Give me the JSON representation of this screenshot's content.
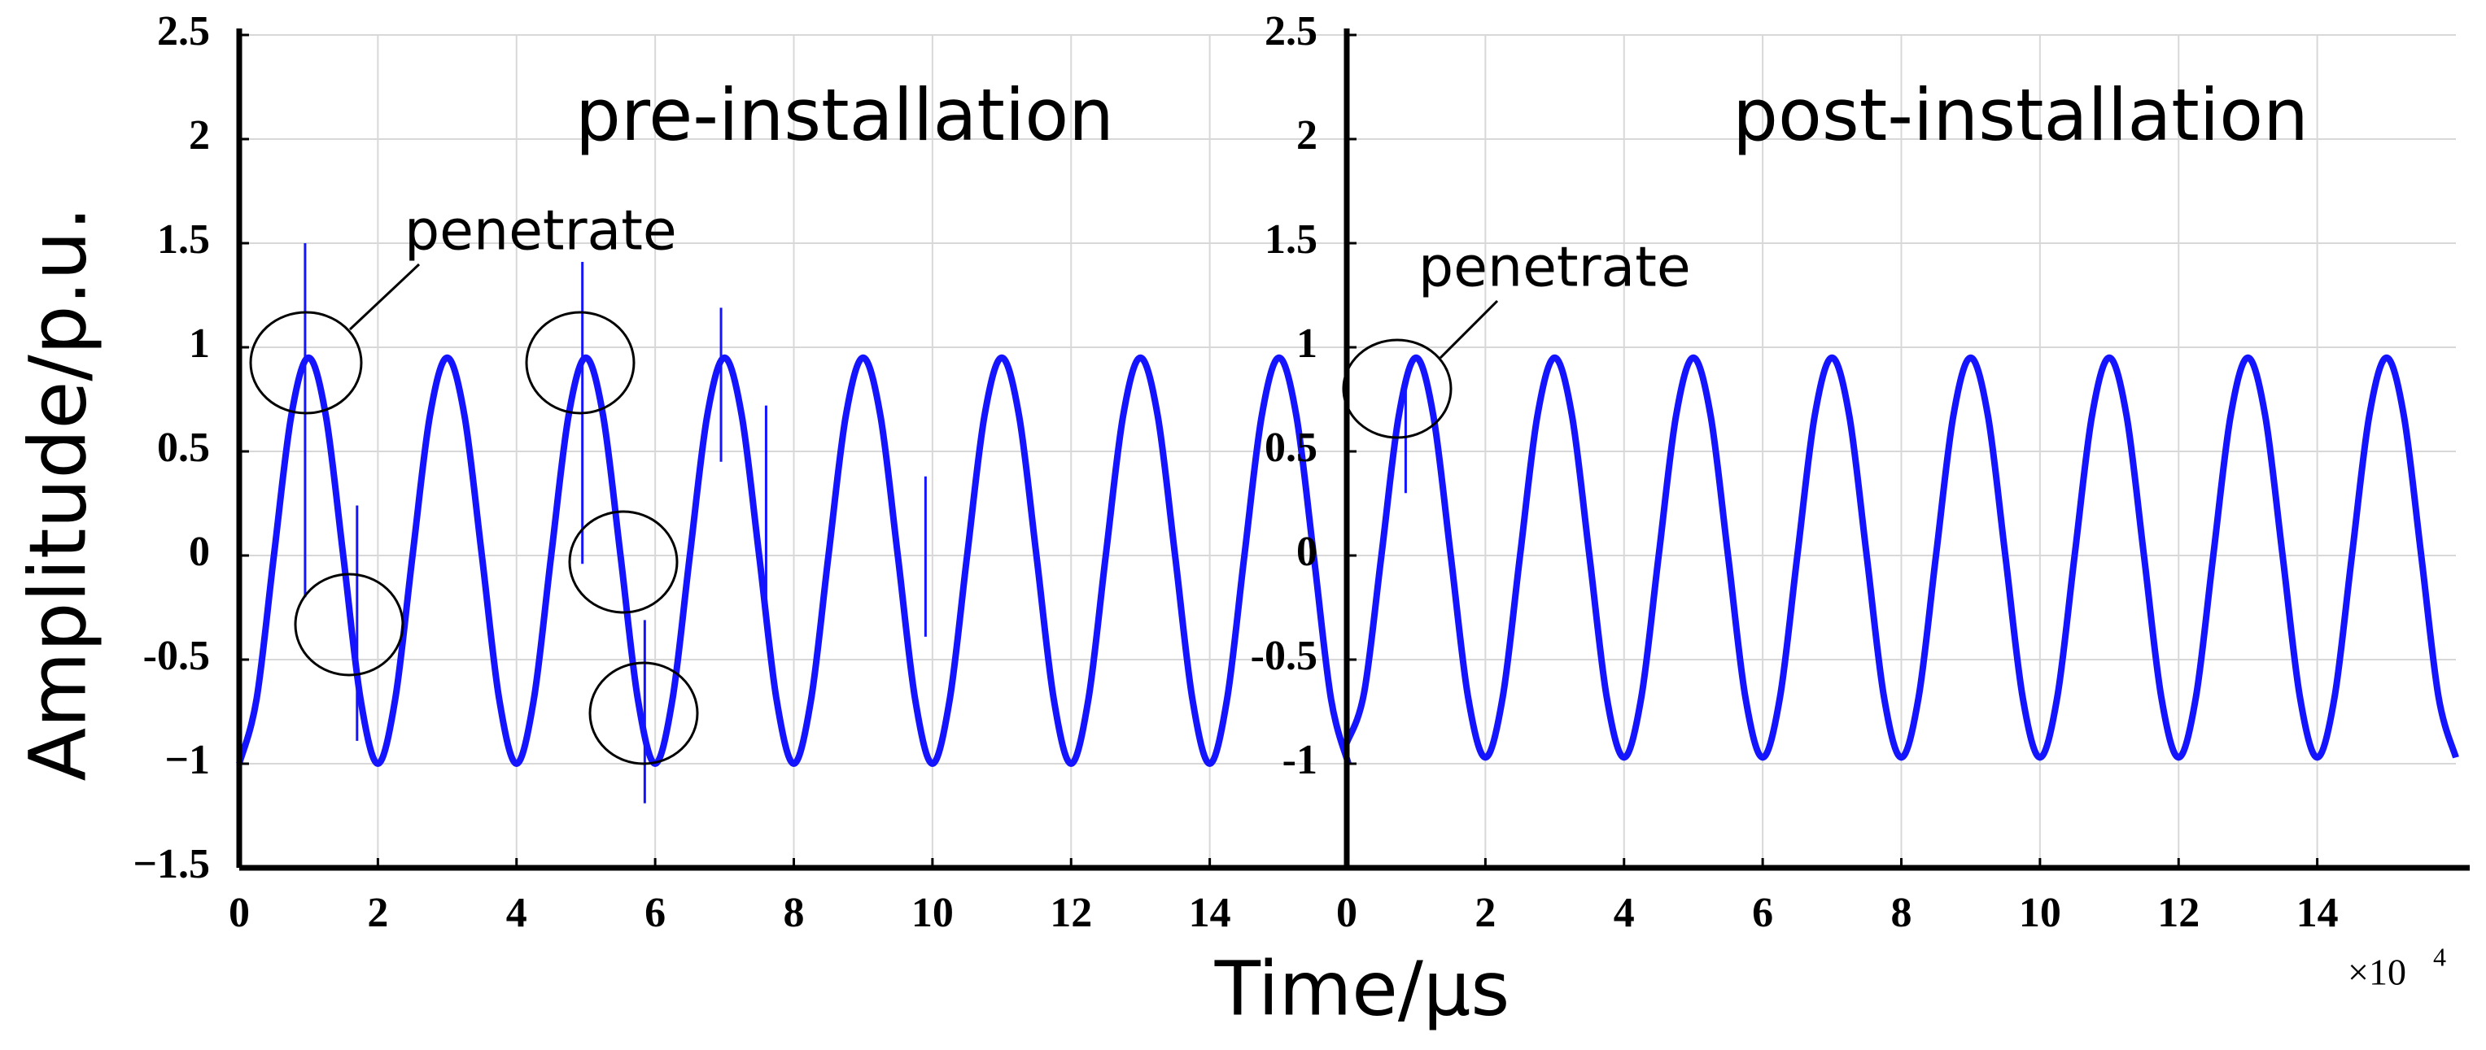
{
  "figure": {
    "ylabel": "Amplitude/p.u.",
    "xlabel": "Time/μs",
    "x_multiplier": {
      "base": "×10",
      "exponent": "4"
    }
  },
  "chart_data": [
    {
      "type": "line",
      "title": "pre-installation",
      "annotations": [
        {
          "text": "penetrate"
        }
      ],
      "x": [
        0,
        0.25,
        0.5,
        0.75,
        1,
        1.25,
        1.5,
        1.75,
        2,
        2.25,
        2.5,
        2.75,
        3,
        3.25,
        3.5,
        3.75,
        4,
        4.25,
        4.5,
        4.75,
        5,
        5.25,
        5.5,
        5.75,
        6,
        6.25,
        6.5,
        6.75,
        7,
        7.25,
        7.5,
        7.75,
        8,
        8.25,
        8.5,
        8.75,
        9,
        9.25,
        9.5,
        9.75,
        10,
        10.25,
        10.5,
        10.75,
        11,
        11.25,
        11.5,
        11.75,
        12,
        12.25,
        12.5,
        12.75,
        13,
        13.25,
        13.5,
        13.75,
        14,
        14.25,
        14.5,
        14.75,
        15,
        15.25,
        15.5,
        15.75,
        16
      ],
      "series": [
        {
          "color": "#1414ff",
          "values": [
            -1,
            -0.69,
            0,
            0.67,
            0.95,
            0.67,
            0,
            -0.69,
            -1,
            -0.69,
            0,
            0.67,
            0.95,
            0.67,
            0,
            -0.69,
            -1,
            -0.69,
            0,
            0.67,
            0.95,
            0.67,
            0,
            -0.69,
            -1,
            -0.69,
            0,
            0.67,
            0.95,
            0.67,
            0,
            -0.69,
            -1,
            -0.69,
            0,
            0.67,
            0.95,
            0.67,
            0,
            -0.69,
            -1,
            -0.69,
            0,
            0.67,
            0.95,
            0.67,
            0,
            -0.69,
            -1,
            -0.69,
            0,
            0.67,
            0.95,
            0.67,
            0,
            -0.69,
            -1,
            -0.69,
            0,
            0.67,
            0.95,
            0.67,
            0,
            -0.69,
            -1
          ]
        }
      ],
      "spikes": {
        "x": [
          0.95,
          1.7,
          4.95,
          5.85,
          6.95,
          7.6,
          9.9
        ],
        "low": [
          -0.2,
          -0.89,
          -0.04,
          -1.19,
          0.45,
          -0.31,
          -0.39
        ],
        "high": [
          1.5,
          0.24,
          1.41,
          -0.31,
          1.19,
          0.72,
          0.38
        ]
      },
      "xlim": [
        0,
        16
      ],
      "xticks": [
        0,
        2,
        4,
        6,
        8,
        10,
        12,
        14
      ],
      "ylim": [
        -1.5,
        2.5
      ],
      "yticks": [
        {
          "value": -1.5,
          "label": "−1.5"
        },
        {
          "value": -1,
          "label": "−1"
        },
        -0.5,
        0,
        0.5,
        1,
        1.5,
        2,
        2.5
      ],
      "grid": true
    },
    {
      "type": "line",
      "title": "post-installation",
      "annotations": [
        {
          "text": "penetrate"
        }
      ],
      "x": [
        0,
        0.25,
        0.5,
        0.75,
        1,
        1.25,
        1.5,
        1.75,
        2,
        2.25,
        2.5,
        2.75,
        3,
        3.25,
        3.5,
        3.75,
        4,
        4.25,
        4.5,
        4.75,
        5,
        5.25,
        5.5,
        5.75,
        6,
        6.25,
        6.5,
        6.75,
        7,
        7.25,
        7.5,
        7.75,
        8,
        8.25,
        8.5,
        8.75,
        9,
        9.25,
        9.5,
        9.75,
        10,
        10.25,
        10.5,
        10.75,
        11,
        11.25,
        11.5,
        11.75,
        12,
        12.25,
        12.5,
        12.75,
        13,
        13.25,
        13.5,
        13.75,
        14,
        14.25,
        14.5,
        14.75,
        15,
        15.25,
        15.5,
        15.75,
        16
      ],
      "series": [
        {
          "color": "#1414ff",
          "values": [
            -0.9,
            -0.66,
            0,
            0.67,
            0.95,
            0.67,
            0,
            -0.68,
            -0.97,
            -0.68,
            0,
            0.67,
            0.95,
            0.67,
            0,
            -0.68,
            -0.97,
            -0.68,
            0,
            0.67,
            0.95,
            0.67,
            0,
            -0.68,
            -0.97,
            -0.68,
            0,
            0.67,
            0.95,
            0.67,
            0,
            -0.68,
            -0.97,
            -0.68,
            0,
            0.67,
            0.95,
            0.67,
            0,
            -0.68,
            -0.97,
            -0.68,
            0,
            0.67,
            0.95,
            0.67,
            0,
            -0.68,
            -0.97,
            -0.68,
            0,
            0.67,
            0.95,
            0.67,
            0,
            -0.68,
            -0.97,
            -0.68,
            0,
            0.67,
            0.95,
            0.67,
            0,
            -0.68,
            -0.97
          ]
        }
      ],
      "spikes": {
        "x": [
          0.85
        ],
        "low": [
          0.3
        ],
        "high": [
          0.85
        ]
      },
      "xlim": [
        0,
        16
      ],
      "xticks": [
        0,
        2,
        4,
        6,
        8,
        10,
        12,
        14
      ],
      "ylim": [
        -1.5,
        2.5
      ],
      "yticks": [
        {
          "value": -1,
          "label": "-1"
        },
        -0.5,
        0,
        0.5,
        1,
        1.5,
        2,
        2.5
      ],
      "grid": true
    }
  ]
}
